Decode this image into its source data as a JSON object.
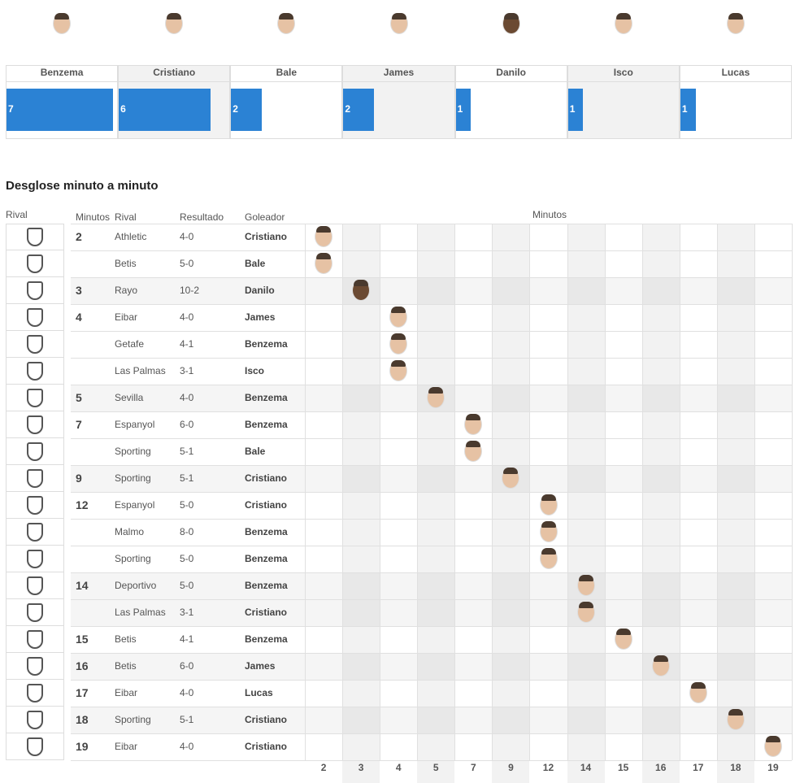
{
  "top_scorers": {
    "players": [
      {
        "name": "Benzema",
        "goals": 7
      },
      {
        "name": "Cristiano",
        "goals": 6
      },
      {
        "name": "Bale",
        "goals": 2
      },
      {
        "name": "James",
        "goals": 2
      },
      {
        "name": "Danilo",
        "goals": 1
      },
      {
        "name": "Isco",
        "goals": 1
      },
      {
        "name": "Lucas",
        "goals": 1
      }
    ]
  },
  "breakdown": {
    "title": "Desglose minuto a minuto",
    "rival_header": "Rival",
    "headers": {
      "minutes": "Minutos",
      "rival": "Rival",
      "result": "Resultado",
      "scorer": "Goleador",
      "grid": "Minutos"
    },
    "groups": [
      {
        "minute": 2,
        "goals": [
          {
            "rival": "Athletic",
            "result": "4-0",
            "scorer": "Cristiano"
          },
          {
            "rival": "Betis",
            "result": "5-0",
            "scorer": "Bale"
          }
        ]
      },
      {
        "minute": 3,
        "goals": [
          {
            "rival": "Rayo",
            "result": "10-2",
            "scorer": "Danilo"
          }
        ]
      },
      {
        "minute": 4,
        "goals": [
          {
            "rival": "Eibar",
            "result": "4-0",
            "scorer": "James"
          },
          {
            "rival": "Getafe",
            "result": "4-1",
            "scorer": "Benzema"
          },
          {
            "rival": "Las Palmas",
            "result": "3-1",
            "scorer": "Isco"
          }
        ]
      },
      {
        "minute": 5,
        "goals": [
          {
            "rival": "Sevilla",
            "result": "4-0",
            "scorer": "Benzema"
          }
        ]
      },
      {
        "minute": 7,
        "goals": [
          {
            "rival": "Espanyol",
            "result": "6-0",
            "scorer": "Benzema"
          },
          {
            "rival": "Sporting",
            "result": "5-1",
            "scorer": "Bale"
          }
        ]
      },
      {
        "minute": 9,
        "goals": [
          {
            "rival": "Sporting",
            "result": "5-1",
            "scorer": "Cristiano"
          }
        ]
      },
      {
        "minute": 12,
        "goals": [
          {
            "rival": "Espanyol",
            "result": "5-0",
            "scorer": "Cristiano"
          },
          {
            "rival": "Malmo",
            "result": "8-0",
            "scorer": "Benzema"
          },
          {
            "rival": "Sporting",
            "result": "5-0",
            "scorer": "Benzema"
          }
        ]
      },
      {
        "minute": 14,
        "goals": [
          {
            "rival": "Deportivo",
            "result": "5-0",
            "scorer": "Benzema"
          },
          {
            "rival": "Las Palmas",
            "result": "3-1",
            "scorer": "Cristiano"
          }
        ]
      },
      {
        "minute": 15,
        "goals": [
          {
            "rival": "Betis",
            "result": "4-1",
            "scorer": "Benzema"
          }
        ]
      },
      {
        "minute": 16,
        "goals": [
          {
            "rival": "Betis",
            "result": "6-0",
            "scorer": "James"
          }
        ]
      },
      {
        "minute": 17,
        "goals": [
          {
            "rival": "Eibar",
            "result": "4-0",
            "scorer": "Lucas"
          }
        ]
      },
      {
        "minute": 18,
        "goals": [
          {
            "rival": "Sporting",
            "result": "5-1",
            "scorer": "Cristiano"
          }
        ]
      },
      {
        "minute": 19,
        "goals": [
          {
            "rival": "Eibar",
            "result": "4-0",
            "scorer": "Cristiano"
          }
        ]
      }
    ],
    "minute_axis": [
      2,
      3,
      4,
      5,
      7,
      9,
      12,
      14,
      15,
      16,
      17,
      18,
      19
    ]
  }
}
